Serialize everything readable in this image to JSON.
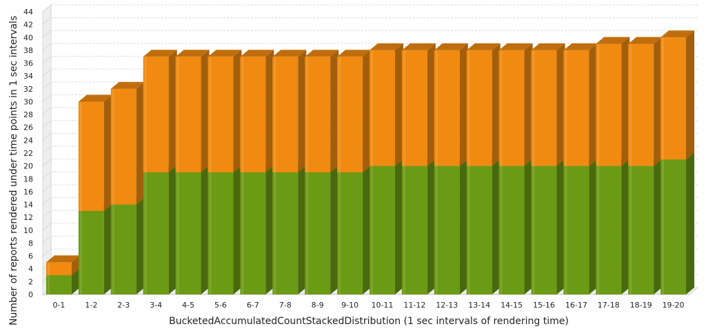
{
  "chart_data": {
    "type": "bar",
    "stacked": true,
    "three_d": true,
    "categories": [
      "0-1",
      "1-2",
      "2-3",
      "3-4",
      "4-5",
      "5-6",
      "6-7",
      "7-8",
      "8-9",
      "9-10",
      "10-11",
      "11-12",
      "12-13",
      "13-14",
      "14-15",
      "15-16",
      "16-17",
      "17-18",
      "18-19",
      "19-20"
    ],
    "series": [
      {
        "color": "#6b9a14",
        "values": [
          3,
          13,
          14,
          19,
          19,
          19,
          19,
          19,
          19,
          19,
          20,
          20,
          20,
          20,
          20,
          20,
          20,
          20,
          20,
          21
        ]
      },
      {
        "color": "#f08a10",
        "values": [
          2,
          17,
          18,
          18,
          18,
          18,
          18,
          18,
          18,
          18,
          18,
          18,
          18,
          18,
          18,
          18,
          18,
          19,
          19,
          19
        ]
      }
    ],
    "xlabel": "BucketedAccumulatedCountStackedDistribution (1 sec intervals of rendering time)",
    "ylabel": "Number of reports rendered under time points in 1 sec intervals",
    "ylim": [
      0,
      44
    ],
    "yticks": [
      0,
      2,
      4,
      6,
      8,
      10,
      12,
      14,
      16,
      18,
      20,
      22,
      24,
      26,
      28,
      30,
      32,
      34,
      36,
      38,
      40,
      42,
      44
    ],
    "grid": true
  }
}
